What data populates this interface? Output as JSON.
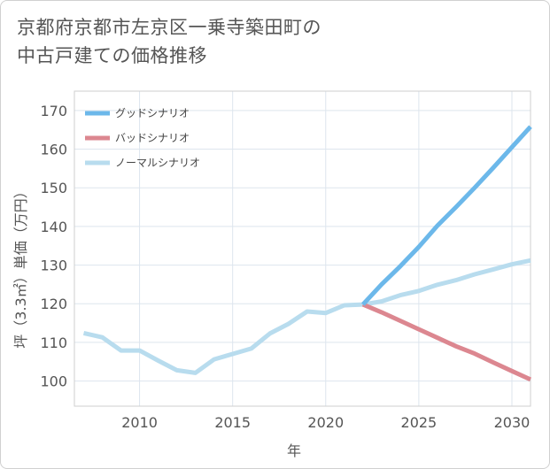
{
  "chart_data": {
    "type": "line",
    "title_lines": [
      "京都府京都市左京区一乗寺築田町の",
      "中古戸建ての価格推移"
    ],
    "xlabel": "年",
    "ylabel": "坪（3.3㎡）単価（万円）",
    "xlim": [
      2006.5,
      2031
    ],
    "ylim": [
      93.5,
      175
    ],
    "x_ticks": [
      2010,
      2015,
      2020,
      2025,
      2030
    ],
    "y_ticks": [
      100,
      110,
      120,
      130,
      140,
      150,
      160,
      170
    ],
    "grid": true,
    "legend_position": "top-left",
    "series": [
      {
        "name": "グッドシナリオ",
        "color": "#6cb8ea",
        "x": [
          2022,
          2023,
          2024,
          2025,
          2026,
          2027,
          2028,
          2029,
          2030,
          2031
        ],
        "values": [
          119.8,
          125.0,
          129.7,
          134.7,
          140.2,
          145.0,
          150.0,
          155.2,
          160.5,
          165.8
        ]
      },
      {
        "name": "バッドシナリオ",
        "color": "#dc8790",
        "x": [
          2022,
          2023,
          2024,
          2025,
          2026,
          2027,
          2028,
          2029,
          2030,
          2031
        ],
        "values": [
          119.8,
          117.8,
          115.6,
          113.4,
          111.2,
          109.0,
          107.1,
          104.8,
          102.6,
          100.4
        ]
      },
      {
        "name": "ノーマルシナリオ",
        "color": "#b8dcee",
        "x": [
          2007,
          2008,
          2009,
          2010,
          2011,
          2012,
          2013,
          2014,
          2015,
          2016,
          2017,
          2018,
          2019,
          2020,
          2021,
          2022,
          2023,
          2024,
          2025,
          2026,
          2027,
          2028,
          2029,
          2030,
          2031
        ],
        "values": [
          112.4,
          111.3,
          107.9,
          107.9,
          105.3,
          102.8,
          102.1,
          105.6,
          107.0,
          108.4,
          112.3,
          114.8,
          118.0,
          117.6,
          119.6,
          119.8,
          120.6,
          122.2,
          123.3,
          124.9,
          126.1,
          127.6,
          128.9,
          130.2,
          131.2
        ]
      }
    ]
  }
}
